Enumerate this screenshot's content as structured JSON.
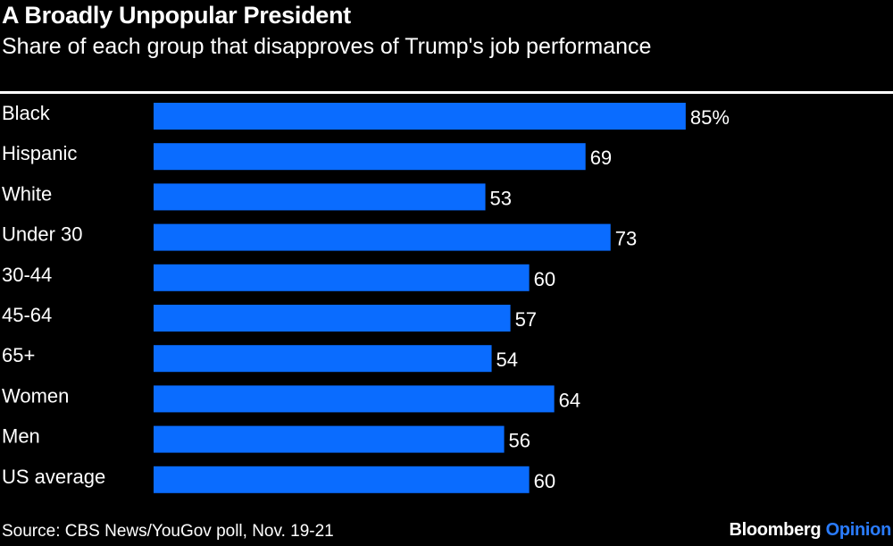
{
  "chart_data": {
    "type": "bar",
    "orientation": "horizontal",
    "title": "A Broadly Unpopular President",
    "subtitle": "Share of each group that disapproves of Trump's job performance",
    "categories": [
      "Black",
      "Hispanic",
      "White",
      "Under 30",
      "30-44",
      "45-64",
      "65+",
      "Women",
      "Men",
      "US average"
    ],
    "values": [
      85,
      69,
      53,
      73,
      60,
      57,
      54,
      64,
      56,
      60
    ],
    "value_labels": [
      "85%",
      "69",
      "53",
      "73",
      "60",
      "57",
      "54",
      "64",
      "56",
      "60"
    ],
    "unit": "%",
    "xlim": [
      0,
      100
    ],
    "grid": false,
    "bar_color": "#0a6cff",
    "source": "Source: CBS News/YouGov poll, Nov. 19-21"
  },
  "branding": {
    "brand": "Bloomberg",
    "section": "Opinion",
    "section_color": "#2a7cff"
  }
}
